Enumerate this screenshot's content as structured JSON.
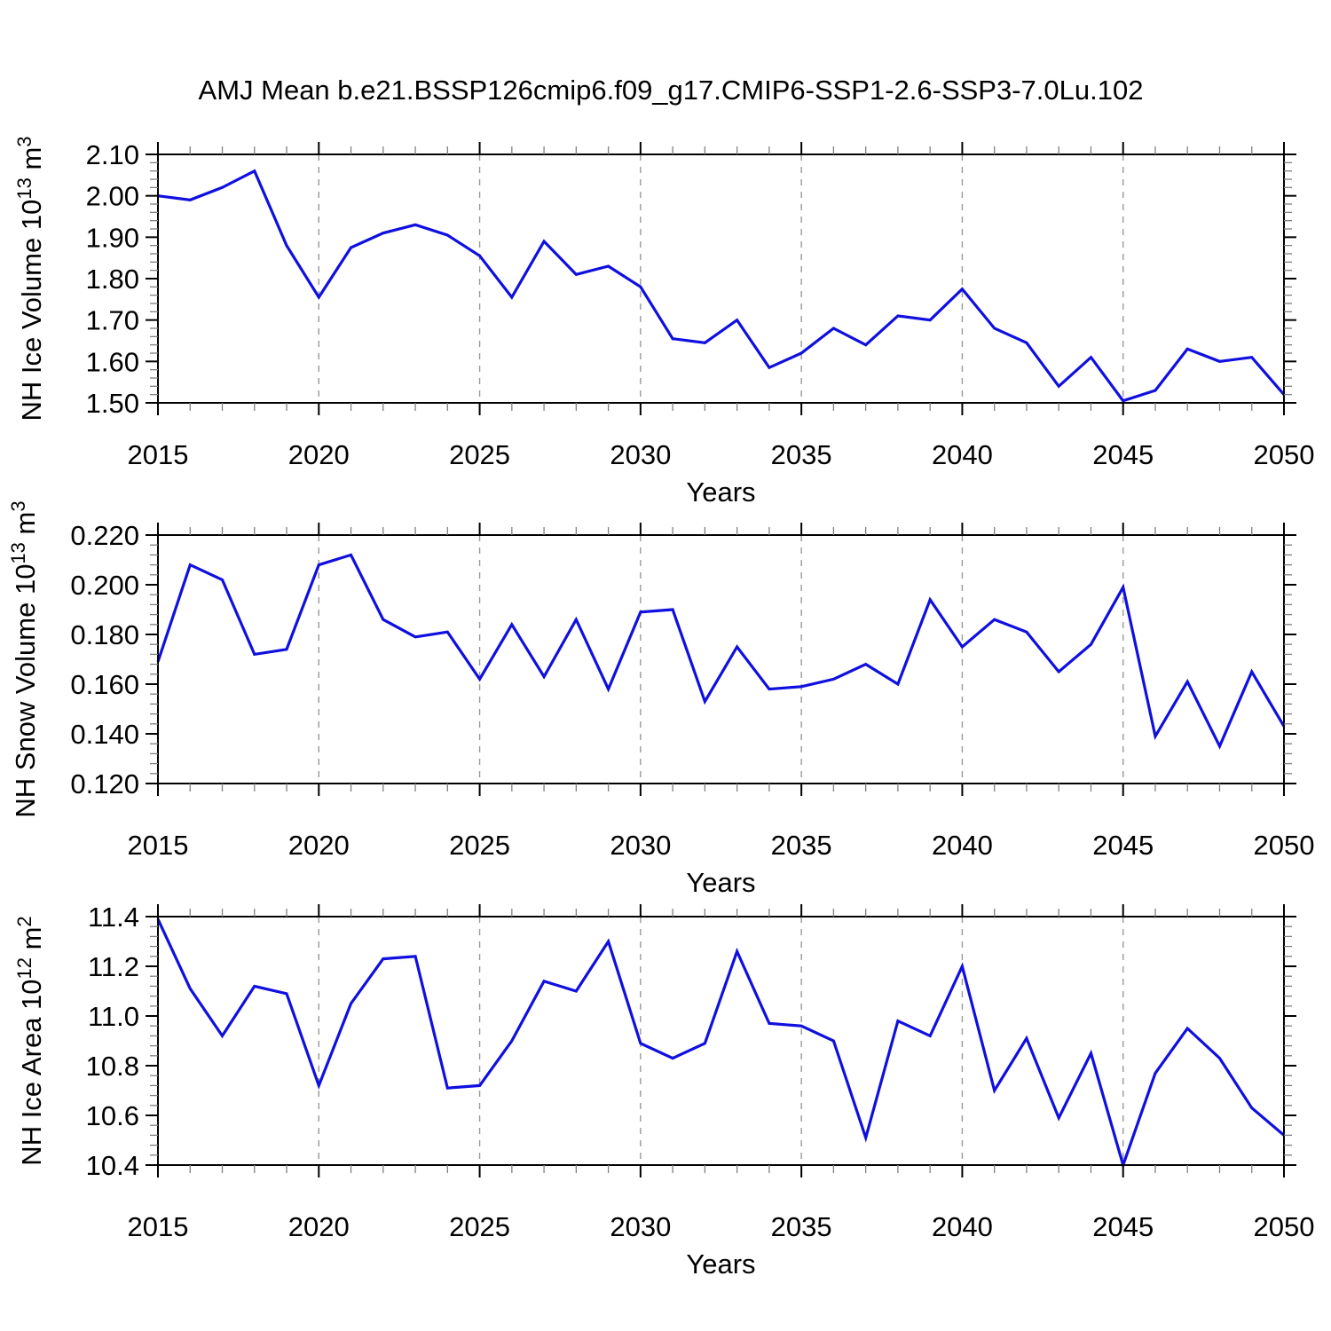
{
  "title": "AMJ Mean b.e21.BSSP126cmip6.f09_g17.CMIP6-SSP1-2.6-SSP3-7.0Lu.102",
  "colors": {
    "line": "#0f0fe0",
    "grid": "#999999",
    "frame": "#000000"
  },
  "chart_data": [
    {
      "type": "line",
      "xlabel": "Years",
      "ylabel": "NH Ice Volume 10^13 m^3",
      "ylabel_parts": {
        "main": "NH Ice Volume 10",
        "exp": "13",
        "unit": " m",
        "unit_exp": "3"
      },
      "xlim": [
        2015,
        2050
      ],
      "xtick_major_step": 5,
      "xtick_minor_step": 1,
      "grid_years": [
        2020,
        2025,
        2030,
        2035,
        2040,
        2045
      ],
      "ylim": [
        1.5,
        2.1
      ],
      "ytick_step": 0.1,
      "yminor_step": 0.02,
      "ytick_decimals": 2,
      "x_years": [
        2015,
        2016,
        2017,
        2018,
        2019,
        2020,
        2021,
        2022,
        2023,
        2024,
        2025,
        2026,
        2027,
        2028,
        2029,
        2030,
        2031,
        2032,
        2033,
        2034,
        2035,
        2036,
        2037,
        2038,
        2039,
        2040,
        2041,
        2042,
        2043,
        2044,
        2045,
        2046,
        2047,
        2048,
        2049,
        2050
      ],
      "values": [
        2.0,
        1.99,
        2.02,
        2.06,
        1.88,
        1.755,
        1.875,
        1.91,
        1.93,
        1.905,
        1.855,
        1.755,
        1.89,
        1.81,
        1.83,
        1.78,
        1.655,
        1.645,
        1.7,
        1.585,
        1.62,
        1.68,
        1.64,
        1.71,
        1.7,
        1.775,
        1.68,
        1.645,
        1.54,
        1.61,
        1.505,
        1.53,
        1.63,
        1.6,
        1.61,
        1.52
      ]
    },
    {
      "type": "line",
      "xlabel": "Years",
      "ylabel": "NH Snow Volume 10^13 m^3",
      "ylabel_parts": {
        "main": "NH Snow Volume 10",
        "exp": "13",
        "unit": " m",
        "unit_exp": "3"
      },
      "xlim": [
        2015,
        2050
      ],
      "xtick_major_step": 5,
      "xtick_minor_step": 1,
      "grid_years": [
        2020,
        2025,
        2030,
        2035,
        2040,
        2045
      ],
      "ylim": [
        0.12,
        0.22
      ],
      "ytick_step": 0.02,
      "yminor_step": 0.004,
      "ytick_decimals": 3,
      "x_years": [
        2015,
        2016,
        2017,
        2018,
        2019,
        2020,
        2021,
        2022,
        2023,
        2024,
        2025,
        2026,
        2027,
        2028,
        2029,
        2030,
        2031,
        2032,
        2033,
        2034,
        2035,
        2036,
        2037,
        2038,
        2039,
        2040,
        2041,
        2042,
        2043,
        2044,
        2045,
        2046,
        2047,
        2048,
        2049,
        2050
      ],
      "values": [
        0.169,
        0.208,
        0.202,
        0.172,
        0.174,
        0.208,
        0.212,
        0.186,
        0.179,
        0.181,
        0.162,
        0.184,
        0.163,
        0.186,
        0.158,
        0.189,
        0.19,
        0.153,
        0.175,
        0.158,
        0.159,
        0.162,
        0.168,
        0.16,
        0.194,
        0.175,
        0.186,
        0.181,
        0.165,
        0.176,
        0.199,
        0.139,
        0.161,
        0.135,
        0.165,
        0.143
      ]
    },
    {
      "type": "line",
      "xlabel": "Years",
      "ylabel": "NH Ice Area 10^12 m^2",
      "ylabel_parts": {
        "main": "NH Ice Area 10",
        "exp": "12",
        "unit": " m",
        "unit_exp": "2"
      },
      "xlim": [
        2015,
        2050
      ],
      "xtick_major_step": 5,
      "xtick_minor_step": 1,
      "grid_years": [
        2020,
        2025,
        2030,
        2035,
        2040,
        2045
      ],
      "ylim": [
        10.4,
        11.4
      ],
      "ytick_step": 0.2,
      "yminor_step": 0.04,
      "ytick_decimals": 1,
      "x_years": [
        2015,
        2016,
        2017,
        2018,
        2019,
        2020,
        2021,
        2022,
        2023,
        2024,
        2025,
        2026,
        2027,
        2028,
        2029,
        2030,
        2031,
        2032,
        2033,
        2034,
        2035,
        2036,
        2037,
        2038,
        2039,
        2040,
        2041,
        2042,
        2043,
        2044,
        2045,
        2046,
        2047,
        2048,
        2049,
        2050
      ],
      "values": [
        11.39,
        11.11,
        10.92,
        11.12,
        11.09,
        10.72,
        11.05,
        11.23,
        11.24,
        10.71,
        10.72,
        10.9,
        11.14,
        11.1,
        11.3,
        10.89,
        10.83,
        10.89,
        11.26,
        10.97,
        10.96,
        10.9,
        10.51,
        10.98,
        10.92,
        11.2,
        10.7,
        10.91,
        10.59,
        10.85,
        10.4,
        10.77,
        10.95,
        10.83,
        10.63,
        10.52
      ]
    }
  ]
}
